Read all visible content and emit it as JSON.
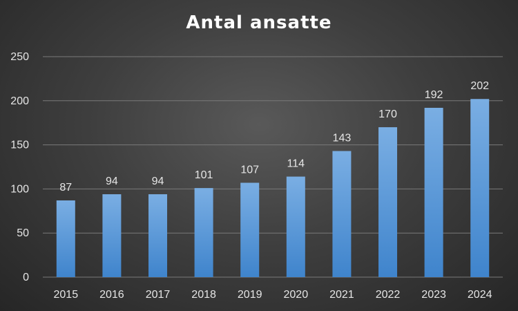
{
  "chart_data": {
    "type": "bar",
    "title": "Antal ansatte",
    "xlabel": "",
    "ylabel": "",
    "categories": [
      "2015",
      "2016",
      "2017",
      "2018",
      "2019",
      "2020",
      "2021",
      "2022",
      "2023",
      "2024"
    ],
    "values": [
      87,
      94,
      94,
      101,
      107,
      114,
      143,
      170,
      192,
      202
    ],
    "ylim": [
      0,
      250
    ],
    "yticks": [
      0,
      50,
      100,
      150,
      200,
      250
    ],
    "grid": true,
    "legend": "none",
    "data_labels": true,
    "colors": {
      "bar_top": "#7aaee3",
      "bar_bottom": "#3f84cc",
      "grid": "#7a7a7a",
      "text": "#e6e6e6"
    }
  }
}
